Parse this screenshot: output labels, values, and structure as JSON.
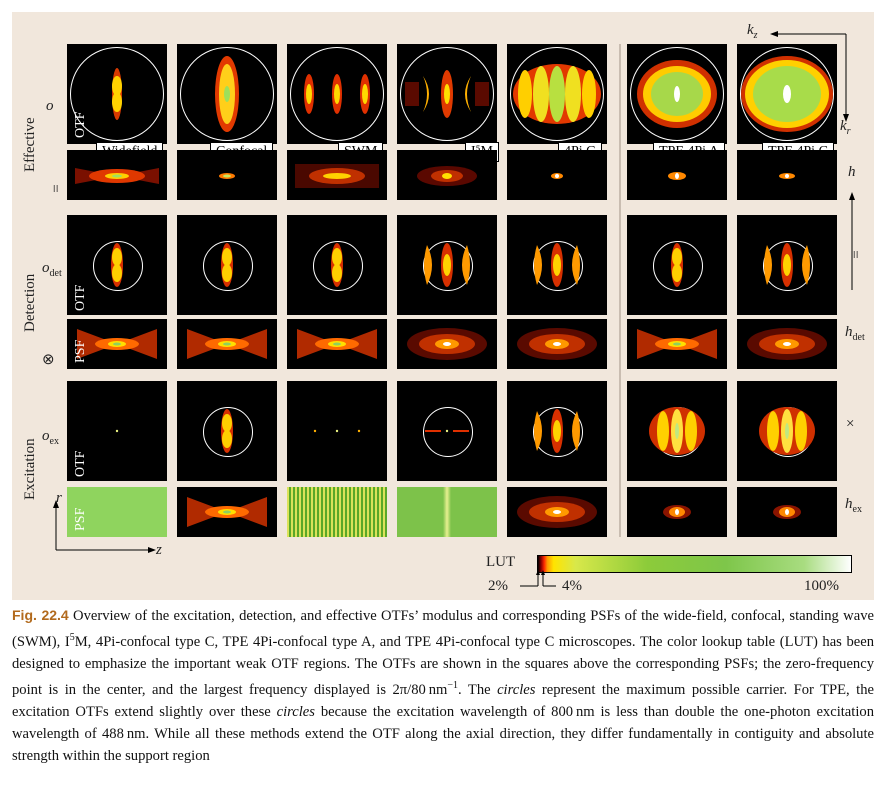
{
  "figure": {
    "methods": [
      "Widefield",
      "Confocal",
      "SWM",
      "I⁵M",
      "4Pi C",
      "TPE 4Pi A",
      "TPE 4Pi C"
    ],
    "groups": {
      "effective": "Effective",
      "detection": "Detection",
      "excitation": "Excitation"
    },
    "row_tags": {
      "otf": "OTF",
      "psf": "PSF"
    },
    "left_symbols": {
      "o": "o",
      "equals": "=",
      "o_det": "o",
      "o_det_sub": "det",
      "otimes": "⊗",
      "o_ex": "o",
      "o_ex_sub": "ex"
    },
    "right_symbols": {
      "h": "h",
      "equals": "=",
      "h_det": "h",
      "h_det_sub": "det",
      "times": "×",
      "h_ex": "h",
      "h_ex_sub": "ex"
    },
    "axes": {
      "kz": "k",
      "kz_sub": "z",
      "kr": "k",
      "kr_sub": "r",
      "r": "r",
      "z": "z"
    },
    "lut": {
      "label": "LUT",
      "min": "2%",
      "mid": "4%",
      "max": "100%"
    }
  },
  "caption": {
    "label": "Fig. 22.4",
    "parts": [
      " Overview of the excitation, detection, and effective OTFs’ modulus and corresponding PSFs of the wide-field, confocal, standing wave (SWM), I",
      "5",
      "M, 4Pi-confocal type C, TPE 4Pi-confocal type A, and TPE 4Pi-confocal type C microscopes. The color lookup table (LUT) has been designed to emphasize the important weak OTF regions. The OTFs are shown in the squares above the corresponding PSFs; the zero-frequency point is in the center, and the largest frequency displayed is 2π/80 nm",
      "−1",
      ". The ",
      "circles",
      " represent the maximum possible carrier. For TPE, the excitation OTFs extend slightly over these ",
      "circles",
      " because the excitation wavelength of 800 nm is less than double the one-photon excitation wavelength of 488 nm. While all these methods extend the OTF along the axial direction, they differ fundamentally in contiguity and absolute strength within the support region"
    ]
  }
}
